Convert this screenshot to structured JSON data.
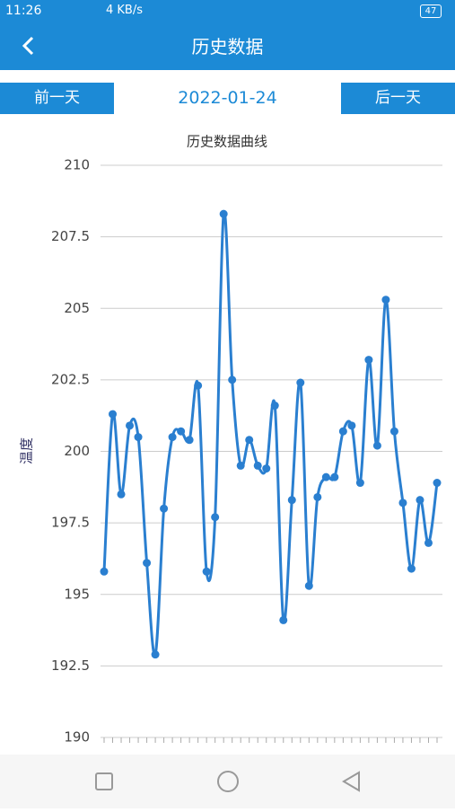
{
  "status_bar": {
    "time": "11:26",
    "speed": "4 KB/s",
    "battery": "47"
  },
  "header": {
    "title": "历史数据"
  },
  "nav": {
    "prev": "前一天",
    "date": "2022-01-24",
    "next": "后一天"
  },
  "chart_data": {
    "type": "line",
    "title": "历史数据曲线",
    "ylabel": "温度",
    "categories": [
      null,
      null,
      null,
      null,
      null,
      null,
      null,
      null,
      null,
      null,
      null,
      null,
      null,
      null,
      null,
      null,
      null,
      null,
      null,
      null,
      null,
      null,
      null,
      null,
      null,
      null,
      null,
      null,
      null,
      null,
      null,
      null,
      null,
      null,
      null,
      null,
      null,
      null,
      null,
      null
    ],
    "values": [
      195.8,
      201.3,
      198.5,
      200.9,
      200.5,
      196.1,
      192.9,
      198.0,
      200.5,
      200.7,
      200.4,
      202.3,
      195.8,
      197.7,
      208.3,
      202.5,
      199.5,
      200.4,
      199.5,
      199.4,
      201.6,
      194.1,
      198.3,
      202.4,
      195.3,
      198.4,
      199.1,
      199.1,
      200.7,
      200.9,
      198.9,
      203.2,
      200.2,
      205.3,
      200.7,
      198.2,
      195.9,
      198.3,
      196.8,
      198.9
    ],
    "color": "#2a7fd0",
    "ylim": [
      190,
      210
    ],
    "yticks": [
      190,
      192.5,
      195,
      197.5,
      200,
      202.5,
      205,
      207.5,
      210
    ],
    "grid": true
  }
}
